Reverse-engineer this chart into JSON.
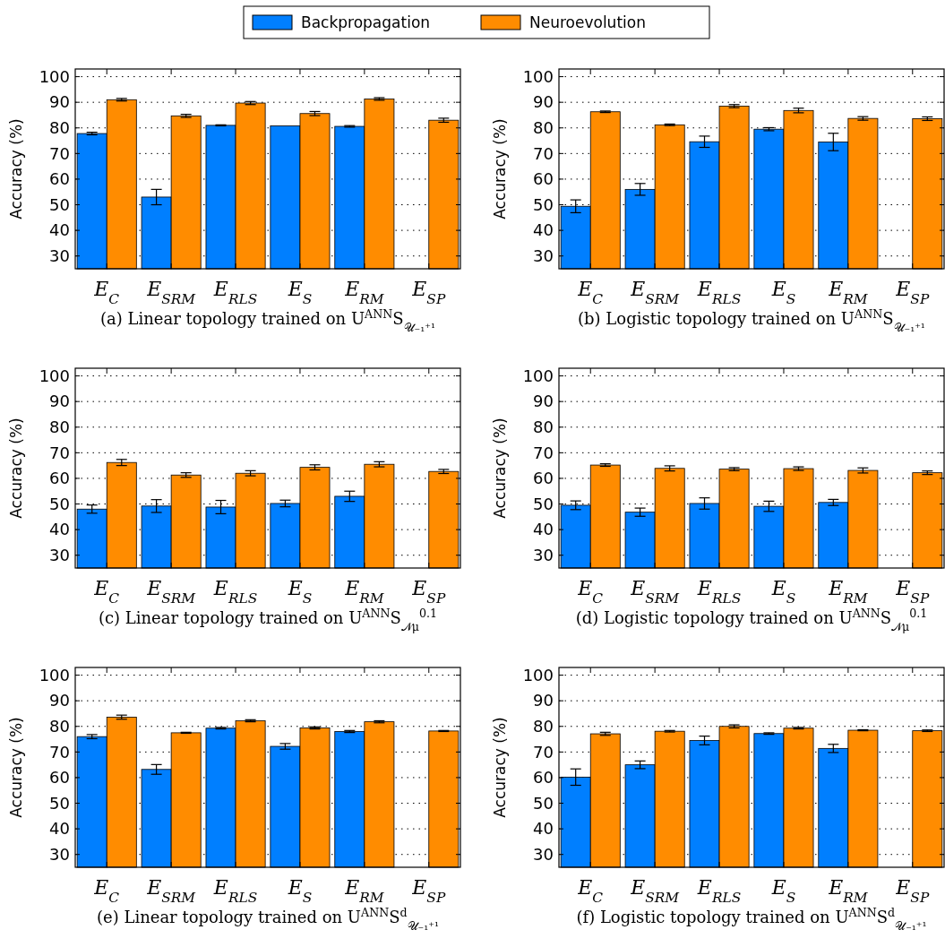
{
  "chart_data": [
    {
      "type": "bar",
      "title": "(a) Linear topology trained on U$^{ANN}$S$_{𝒰₋₁⁺¹}$",
      "ylabel": "Accuracy (%)",
      "categories": [
        "E$_{C}$",
        "E$_{SRM}$",
        "E$_{RLS}$",
        "E$_{S}$",
        "E$_{RM}$",
        "E$_{SP}$"
      ],
      "ylim": [
        25,
        103
      ],
      "yticks": [
        30,
        40,
        50,
        60,
        70,
        80,
        90,
        100
      ],
      "grid": "y",
      "legend": "top",
      "series": [
        {
          "name": "Backpropagation",
          "color": "#007fff",
          "values": [
            77.8,
            53,
            81,
            80.8,
            80.6,
            null
          ],
          "errors": [
            0.5,
            3,
            0.2,
            null,
            0.3,
            null
          ]
        },
        {
          "name": "Neuroevolution",
          "color": "#ff8c00",
          "values": [
            91,
            84.7,
            89.7,
            85.6,
            91.3,
            83
          ],
          "errors": [
            0.5,
            0.6,
            0.6,
            0.8,
            0.5,
            0.8
          ]
        }
      ]
    },
    {
      "type": "bar",
      "title": "(b) Logistic topology trained on U$^{ANN}$S$_{𝒰₋₁⁺¹}$",
      "ylabel": "Accuracy (%)",
      "categories": [
        "E$_{C}$",
        "E$_{SRM}$",
        "E$_{RLS}$",
        "E$_{S}$",
        "E$_{RM}$",
        "E$_{SP}$"
      ],
      "ylim": [
        25,
        103
      ],
      "yticks": [
        30,
        40,
        50,
        60,
        70,
        80,
        90,
        100
      ],
      "grid": "y",
      "series": [
        {
          "color": "#007fff",
          "values": [
            49.4,
            56,
            74.6,
            79.5,
            74.5,
            null
          ],
          "errors": [
            2.5,
            2.3,
            2.2,
            0.6,
            3.4,
            null
          ]
        },
        {
          "color": "#ff8c00",
          "values": [
            86.3,
            81.2,
            88.5,
            86.8,
            83.7,
            83.6
          ],
          "errors": [
            0.3,
            0.3,
            0.6,
            0.9,
            0.7,
            0.7
          ]
        }
      ]
    },
    {
      "type": "bar",
      "title": "(c) Linear topology trained on U$^{ANN}$S$_{𝒩}$$_{μ}$$^{0.1}$",
      "ylabel": "Accuracy (%)",
      "categories": [
        "E$_{C}$",
        "E$_{SRM}$",
        "E$_{RLS}$",
        "E$_{S}$",
        "E$_{RM}$",
        "E$_{SP}$"
      ],
      "ylim": [
        25,
        103
      ],
      "yticks": [
        30,
        40,
        50,
        60,
        70,
        80,
        90,
        100
      ],
      "grid": "y",
      "series": [
        {
          "color": "#007fff",
          "values": [
            48,
            49.2,
            48.8,
            50.2,
            53,
            null
          ],
          "errors": [
            1.6,
            2.5,
            2.6,
            1.3,
            2,
            null
          ]
        },
        {
          "color": "#ff8c00",
          "values": [
            66.2,
            61.3,
            62,
            64.3,
            65.5,
            62.7
          ],
          "errors": [
            1.2,
            0.9,
            1,
            1,
            1,
            0.8
          ]
        }
      ]
    },
    {
      "type": "bar",
      "title": "(d) Logistic topology trained on U$^{ANN}$S$_{𝒩}$$_{μ}$$^{0.1}$",
      "ylabel": "Accuracy (%)",
      "categories": [
        "E$_{C}$",
        "E$_{SRM}$",
        "E$_{RLS}$",
        "E$_{S}$",
        "E$_{RM}$",
        "E$_{SP}$"
      ],
      "ylim": [
        25,
        103
      ],
      "yticks": [
        30,
        40,
        50,
        60,
        70,
        80,
        90,
        100
      ],
      "grid": "y",
      "series": [
        {
          "color": "#007fff",
          "values": [
            49.5,
            46.8,
            50.2,
            49.1,
            50.6,
            null
          ],
          "errors": [
            1.7,
            1.6,
            2.2,
            2,
            1.2,
            null
          ]
        },
        {
          "color": "#ff8c00",
          "values": [
            65.2,
            63.9,
            63.6,
            63.8,
            63.1,
            62.2
          ],
          "errors": [
            0.5,
            1,
            0.6,
            0.7,
            1,
            0.7
          ]
        }
      ]
    },
    {
      "type": "bar",
      "title": "(e) Linear topology trained on U$^{ANN}$S$^{d}$$_{𝒰₋₁⁺¹}$",
      "ylabel": "Accuracy (%)",
      "categories": [
        "E$_{C}$",
        "E$_{SRM}$",
        "E$_{RLS}$",
        "E$_{S}$",
        "E$_{RM}$",
        "E$_{SP}$"
      ],
      "ylim": [
        25,
        103
      ],
      "yticks": [
        30,
        40,
        50,
        60,
        70,
        80,
        90,
        100
      ],
      "grid": "y",
      "series": [
        {
          "color": "#007fff",
          "values": [
            76,
            63.2,
            79.3,
            72.2,
            78,
            null
          ],
          "errors": [
            0.8,
            1.9,
            0.3,
            1.1,
            0.4,
            null
          ]
        },
        {
          "color": "#ff8c00",
          "values": [
            83.6,
            77.5,
            82.2,
            79.4,
            81.8,
            78.2
          ],
          "errors": [
            0.8,
            0.2,
            0.4,
            0.4,
            0.4,
            0.2
          ]
        }
      ]
    },
    {
      "type": "bar",
      "title": "(f) Logistic topology trained on U$^{ANN}$S$^{d}$$_{𝒰₋₁⁺¹}$",
      "ylabel": "Accuracy (%)",
      "categories": [
        "E$_{C}$",
        "E$_{SRM}$",
        "E$_{RLS}$",
        "E$_{S}$",
        "E$_{RM}$",
        "E$_{SP}$"
      ],
      "ylim": [
        25,
        103
      ],
      "yticks": [
        30,
        40,
        50,
        60,
        70,
        80,
        90,
        100
      ],
      "grid": "y",
      "series": [
        {
          "color": "#007fff",
          "values": [
            60.2,
            65,
            74.5,
            77.2,
            71.4,
            null
          ],
          "errors": [
            3.2,
            1.5,
            1.7,
            0.3,
            1.6,
            null
          ]
        },
        {
          "color": "#ff8c00",
          "values": [
            77.1,
            78.1,
            80,
            79.3,
            78.5,
            78.3
          ],
          "errors": [
            0.6,
            0.3,
            0.6,
            0.3,
            0.2,
            0.3
          ]
        }
      ]
    }
  ]
}
